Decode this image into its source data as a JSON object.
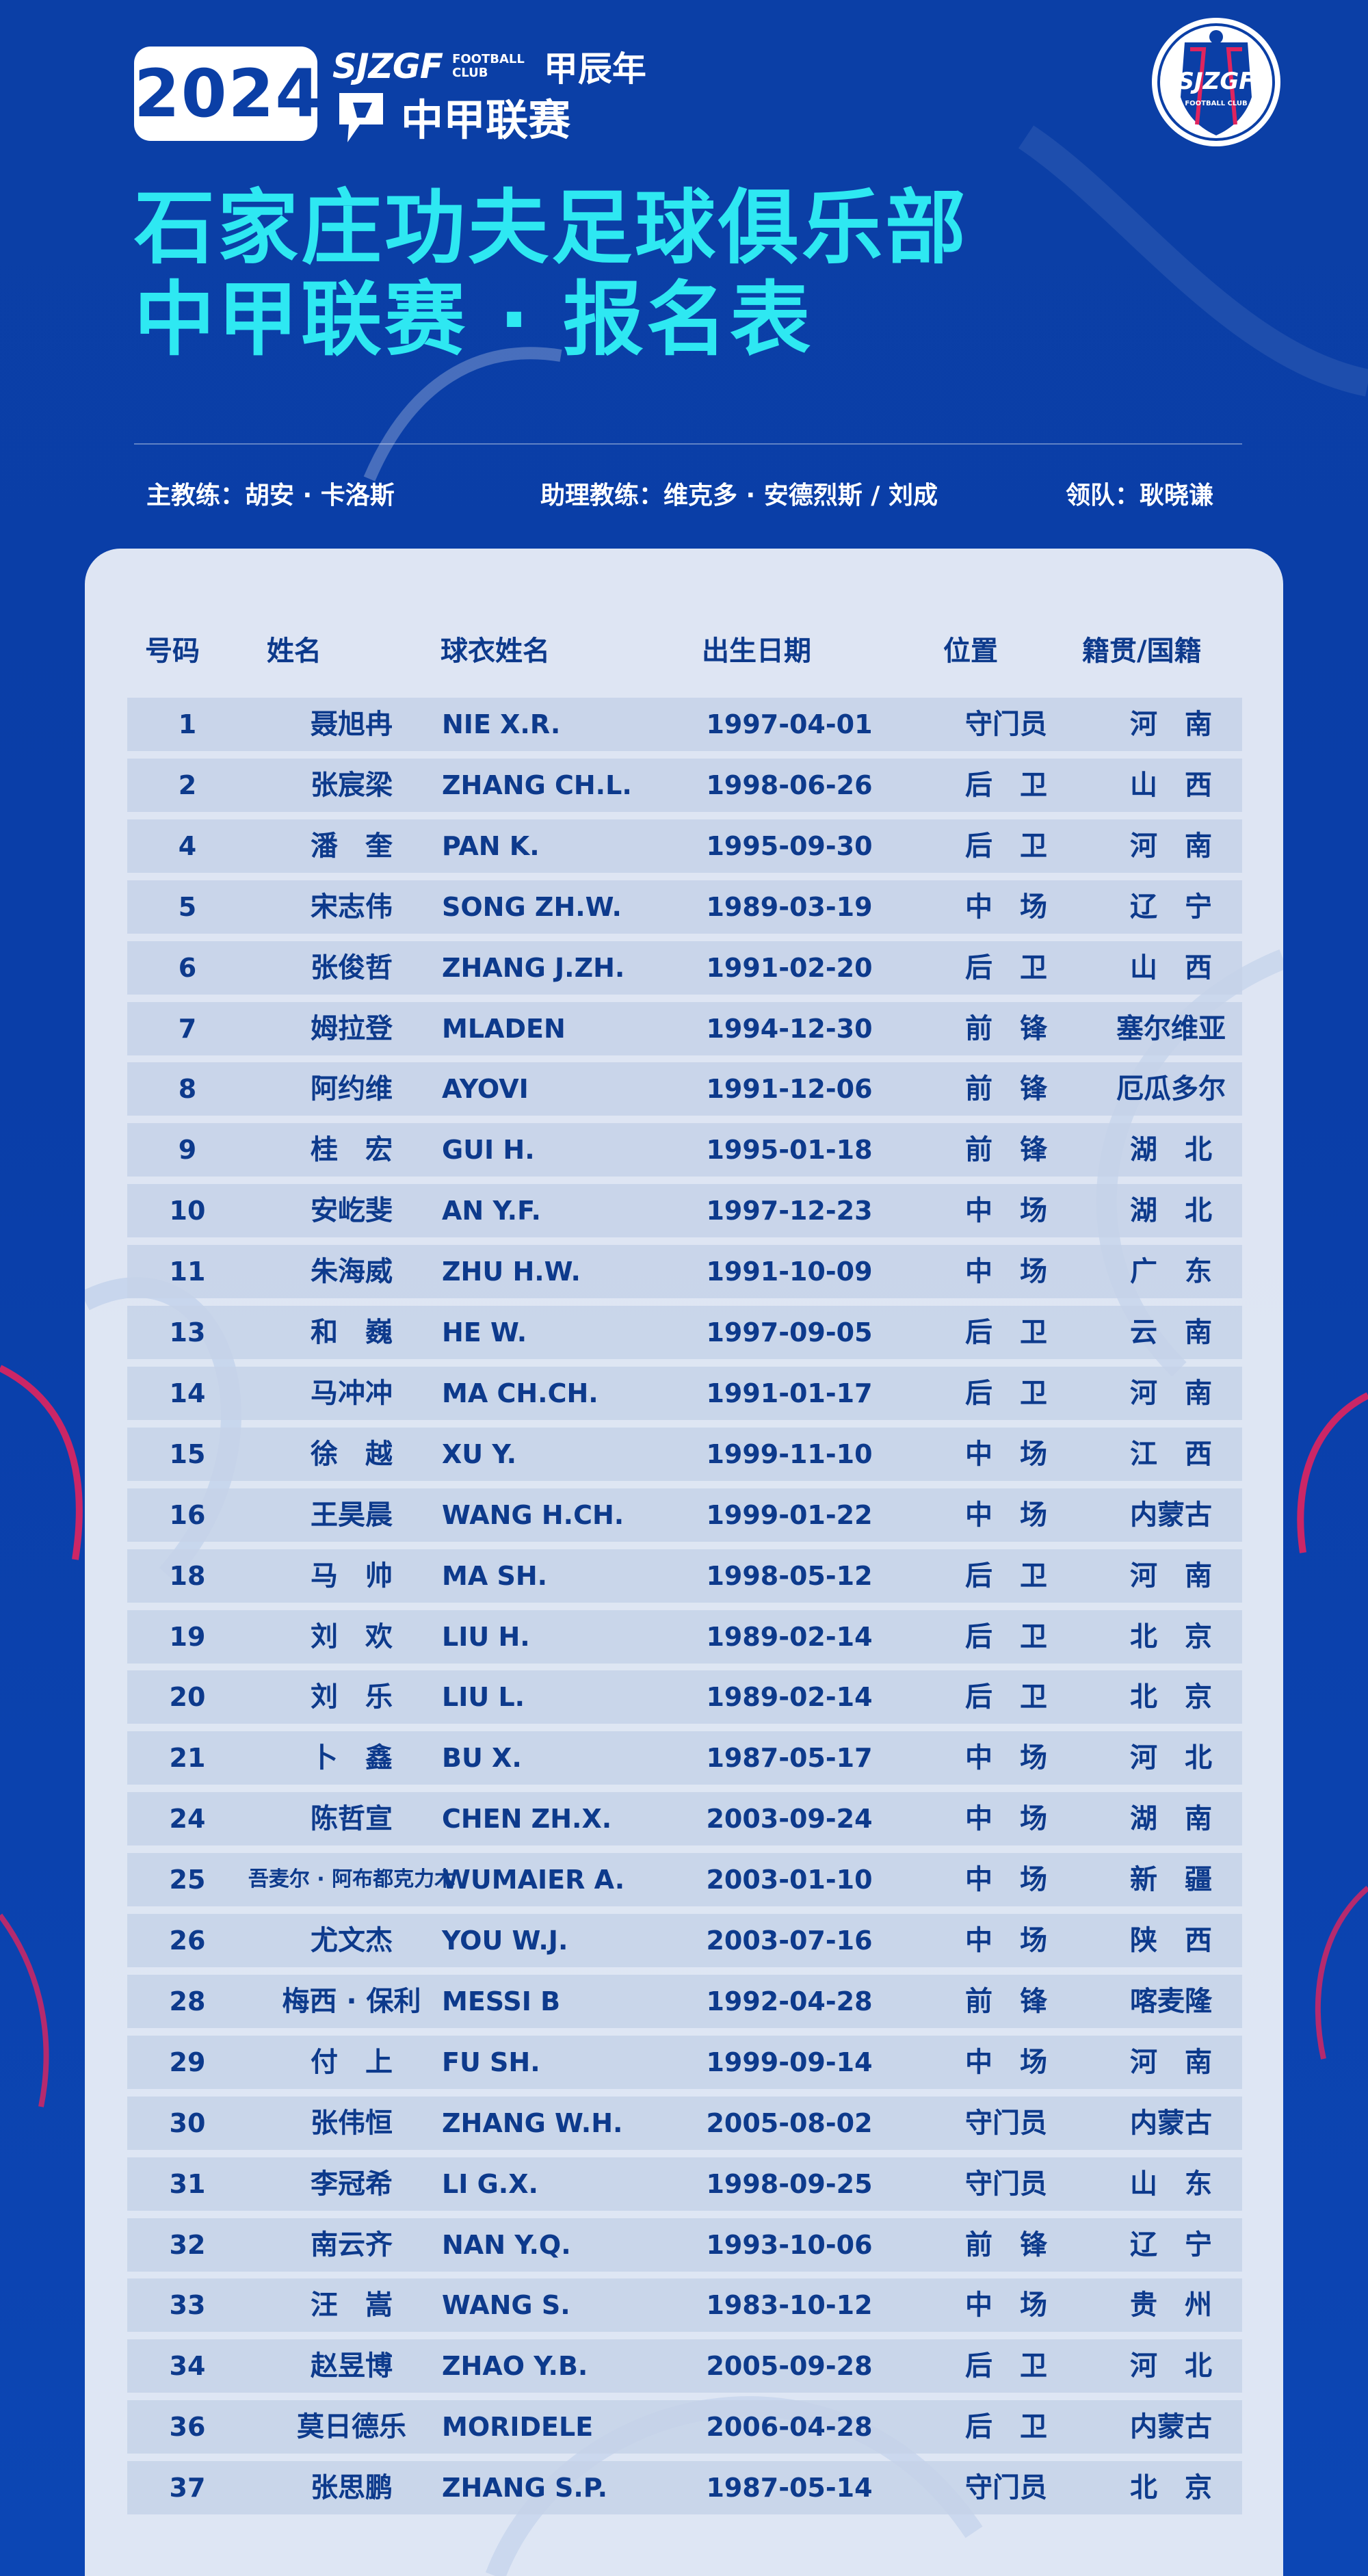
{
  "header": {
    "year": "2024",
    "brand": "SJZGF",
    "brand_fc_line1": "FOOTBALL",
    "brand_fc_line2": "CLUB",
    "zodiac_year": "甲辰年",
    "league": "中甲联赛",
    "crest_text": "SJZGF",
    "crest_subtext": "FOOTBALL CLUB"
  },
  "title": {
    "line1": "石家庄功夫足球俱乐部",
    "line2": "中甲联赛 · 报名表"
  },
  "staff": {
    "head_coach": "主教练：胡安 · 卡洛斯",
    "assistant_coach": "助理教练：维克多 · 安德烈斯  /  刘成",
    "team_leader": "领队：耿晓谦"
  },
  "table": {
    "headers": {
      "number": "号码",
      "name": "姓名",
      "shirt_name": "球衣姓名",
      "birth_date": "出生日期",
      "position": "位置",
      "origin": "籍贯/国籍"
    },
    "rows": [
      {
        "number": "1",
        "name": "聂旭冉",
        "shirt": "NIE X.R.",
        "birth": "1997-04-01",
        "position": "守门员",
        "origin": "河　南"
      },
      {
        "number": "2",
        "name": "张宸梁",
        "shirt": "ZHANG CH.L.",
        "birth": "1998-06-26",
        "position": "后　卫",
        "origin": "山　西"
      },
      {
        "number": "4",
        "name": "潘　奎",
        "shirt": "PAN K.",
        "birth": "1995-09-30",
        "position": "后　卫",
        "origin": "河　南"
      },
      {
        "number": "5",
        "name": "宋志伟",
        "shirt": "SONG ZH.W.",
        "birth": "1989-03-19",
        "position": "中　场",
        "origin": "辽　宁"
      },
      {
        "number": "6",
        "name": "张俊哲",
        "shirt": "ZHANG J.ZH.",
        "birth": "1991-02-20",
        "position": "后　卫",
        "origin": "山　西"
      },
      {
        "number": "7",
        "name": "姆拉登",
        "shirt": "MLADEN",
        "birth": "1994-12-30",
        "position": "前　锋",
        "origin": "塞尔维亚"
      },
      {
        "number": "8",
        "name": "阿约维",
        "shirt": "AYOVI",
        "birth": "1991-12-06",
        "position": "前　锋",
        "origin": "厄瓜多尔"
      },
      {
        "number": "9",
        "name": "桂　宏",
        "shirt": "GUI H.",
        "birth": "1995-01-18",
        "position": "前　锋",
        "origin": "湖　北"
      },
      {
        "number": "10",
        "name": "安屹斐",
        "shirt": "AN Y.F.",
        "birth": "1997-12-23",
        "position": "中　场",
        "origin": "湖　北"
      },
      {
        "number": "11",
        "name": "朱海威",
        "shirt": "ZHU H.W.",
        "birth": "1991-10-09",
        "position": "中　场",
        "origin": "广　东"
      },
      {
        "number": "13",
        "name": "和　巍",
        "shirt": "HE W.",
        "birth": "1997-09-05",
        "position": "后　卫",
        "origin": "云　南"
      },
      {
        "number": "14",
        "name": "马冲冲",
        "shirt": "MA CH.CH.",
        "birth": "1991-01-17",
        "position": "后　卫",
        "origin": "河　南"
      },
      {
        "number": "15",
        "name": "徐　越",
        "shirt": "XU Y.",
        "birth": "1999-11-10",
        "position": "中　场",
        "origin": "江　西"
      },
      {
        "number": "16",
        "name": "王昊晨",
        "shirt": "WANG H.CH.",
        "birth": "1999-01-22",
        "position": "中　场",
        "origin": "内蒙古"
      },
      {
        "number": "18",
        "name": "马　帅",
        "shirt": "MA SH.",
        "birth": "1998-05-12",
        "position": "后　卫",
        "origin": "河　南"
      },
      {
        "number": "19",
        "name": "刘　欢",
        "shirt": "LIU H.",
        "birth": "1989-02-14",
        "position": "后　卫",
        "origin": "北　京"
      },
      {
        "number": "20",
        "name": "刘　乐",
        "shirt": "LIU L.",
        "birth": "1989-02-14",
        "position": "后　卫",
        "origin": "北　京"
      },
      {
        "number": "21",
        "name": "卜　鑫",
        "shirt": "BU X.",
        "birth": "1987-05-17",
        "position": "中　场",
        "origin": "河　北"
      },
      {
        "number": "24",
        "name": "陈哲宣",
        "shirt": "CHEN ZH.X.",
        "birth": "2003-09-24",
        "position": "中　场",
        "origin": "湖　南"
      },
      {
        "number": "25",
        "name": "吾麦尔 · 阿布都克力木",
        "shirt": "WUMAIER A.",
        "birth": "2003-01-10",
        "position": "中　场",
        "origin": "新　疆",
        "small": true
      },
      {
        "number": "26",
        "name": "尤文杰",
        "shirt": "YOU W.J.",
        "birth": "2003-07-16",
        "position": "中　场",
        "origin": "陕　西"
      },
      {
        "number": "28",
        "name": "梅西 · 保利",
        "shirt": "MESSI B",
        "birth": "1992-04-28",
        "position": "前　锋",
        "origin": "喀麦隆"
      },
      {
        "number": "29",
        "name": "付　上",
        "shirt": " FU SH.",
        "birth": "1999-09-14",
        "position": "中　场",
        "origin": "河　南"
      },
      {
        "number": "30",
        "name": "张伟恒",
        "shirt": "ZHANG W.H.",
        "birth": "2005-08-02",
        "position": "守门员",
        "origin": "内蒙古"
      },
      {
        "number": "31",
        "name": "李冠希",
        "shirt": "LI G.X.",
        "birth": "1998-09-25",
        "position": "守门员",
        "origin": "山　东"
      },
      {
        "number": "32",
        "name": "南云齐",
        "shirt": "NAN Y.Q.",
        "birth": "1993-10-06",
        "position": "前　锋",
        "origin": "辽　宁"
      },
      {
        "number": "33",
        "name": "汪　嵩",
        "shirt": "WANG S.",
        "birth": "1983-10-12",
        "position": "中　场",
        "origin": "贵　州"
      },
      {
        "number": "34",
        "name": "赵昱博",
        "shirt": "ZHAO Y.B.",
        "birth": "2005-09-28",
        "position": "后　卫",
        "origin": "河　北"
      },
      {
        "number": "36",
        "name": "莫日德乐",
        "shirt": "MORIDELE",
        "birth": "2006-04-28",
        "position": "后　卫",
        "origin": "内蒙古"
      },
      {
        "number": "37",
        "name": "张思鹏",
        "shirt": "ZHANG S.P.",
        "birth": "1987-05-14",
        "position": "守门员",
        "origin": "北　京"
      }
    ]
  },
  "colors": {
    "background": "#0b3fa6",
    "title_cyan": "#2ee8f2",
    "table_text": "#0d3a8c",
    "row_band": "#c5d2e8",
    "card": "#ecf0f8",
    "accent_pink": "#e0245e"
  }
}
